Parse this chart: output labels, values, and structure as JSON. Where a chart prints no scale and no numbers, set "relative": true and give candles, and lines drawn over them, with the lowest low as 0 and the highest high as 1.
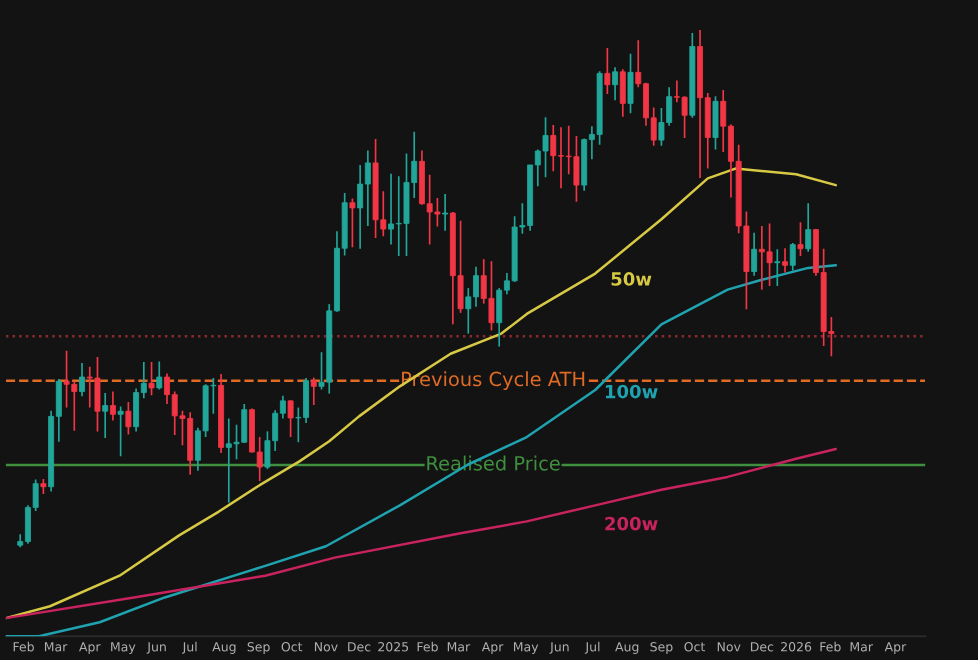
{
  "chart_data": {
    "type": "candlestick",
    "relative": true,
    "legend": false,
    "x": [
      "2024-01-29",
      "2024-02-05",
      "2024-02-12",
      "2024-02-19",
      "2024-02-26",
      "2024-03-04",
      "2024-03-11",
      "2024-03-18",
      "2024-03-25",
      "2024-04-01",
      "2024-04-08",
      "2024-04-15",
      "2024-04-22",
      "2024-04-29",
      "2024-05-06",
      "2024-05-13",
      "2024-05-20",
      "2024-05-27",
      "2024-06-03",
      "2024-06-10",
      "2024-06-17",
      "2024-06-24",
      "2024-07-01",
      "2024-07-08",
      "2024-07-15",
      "2024-07-22",
      "2024-07-29",
      "2024-08-05",
      "2024-08-12",
      "2024-08-19",
      "2024-08-26",
      "2024-09-02",
      "2024-09-09",
      "2024-09-16",
      "2024-09-23",
      "2024-09-30",
      "2024-10-07",
      "2024-10-14",
      "2024-10-21",
      "2024-10-28",
      "2024-11-04",
      "2024-11-11",
      "2024-11-18",
      "2024-11-25",
      "2024-12-02",
      "2024-12-09",
      "2024-12-16",
      "2024-12-23",
      "2024-12-30",
      "2025-01-06",
      "2025-01-13",
      "2025-01-20",
      "2025-01-27",
      "2025-02-03",
      "2025-02-10",
      "2025-02-17",
      "2025-02-24",
      "2025-03-03",
      "2025-03-10",
      "2025-03-17",
      "2025-03-24",
      "2025-03-31",
      "2025-04-07",
      "2025-04-14",
      "2025-04-21",
      "2025-04-28",
      "2025-05-05",
      "2025-05-12",
      "2025-05-19",
      "2025-05-26",
      "2025-06-02",
      "2025-06-09",
      "2025-06-16",
      "2025-06-23",
      "2025-06-30",
      "2025-07-07",
      "2025-07-14",
      "2025-07-21",
      "2025-07-28",
      "2025-08-04",
      "2025-08-11",
      "2025-08-18",
      "2025-08-25",
      "2025-09-01",
      "2025-09-08",
      "2025-09-15",
      "2025-09-22",
      "2025-09-29",
      "2025-10-06",
      "2025-10-13",
      "2025-10-20",
      "2025-10-27",
      "2025-11-03",
      "2025-11-10",
      "2025-11-17",
      "2025-11-24",
      "2025-12-01",
      "2025-12-08",
      "2025-12-15",
      "2025-12-22",
      "2025-12-29",
      "2026-01-05",
      "2026-01-12",
      "2026-01-19",
      "2026-01-26",
      "2026-02-02"
    ],
    "ohlc": [
      [
        0.004,
        0.025,
        0.0,
        0.011
      ],
      [
        0.011,
        0.081,
        0.007,
        0.077
      ],
      [
        0.077,
        0.131,
        0.07,
        0.123
      ],
      [
        0.123,
        0.132,
        0.103,
        0.117
      ],
      [
        0.117,
        0.264,
        0.108,
        0.253
      ],
      [
        0.253,
        0.325,
        0.204,
        0.321
      ],
      [
        0.321,
        0.38,
        0.27,
        0.315
      ],
      [
        0.315,
        0.321,
        0.225,
        0.301
      ],
      [
        0.301,
        0.356,
        0.292,
        0.329
      ],
      [
        0.329,
        0.349,
        0.27,
        0.327
      ],
      [
        0.327,
        0.368,
        0.224,
        0.263
      ],
      [
        0.263,
        0.298,
        0.211,
        0.274
      ],
      [
        0.274,
        0.301,
        0.245,
        0.257
      ],
      [
        0.257,
        0.272,
        0.176,
        0.263
      ],
      [
        0.263,
        0.281,
        0.218,
        0.233
      ],
      [
        0.233,
        0.307,
        0.224,
        0.299
      ],
      [
        0.299,
        0.358,
        0.288,
        0.317
      ],
      [
        0.317,
        0.358,
        0.294,
        0.308
      ],
      [
        0.308,
        0.359,
        0.305,
        0.329
      ],
      [
        0.329,
        0.336,
        0.277,
        0.295
      ],
      [
        0.295,
        0.301,
        0.217,
        0.254
      ],
      [
        0.254,
        0.264,
        0.197,
        0.249
      ],
      [
        0.249,
        0.261,
        0.14,
        0.168
      ],
      [
        0.168,
        0.231,
        0.148,
        0.225
      ],
      [
        0.225,
        0.315,
        0.213,
        0.312
      ],
      [
        0.312,
        0.327,
        0.258,
        0.313
      ],
      [
        0.313,
        0.335,
        0.182,
        0.193
      ],
      [
        0.193,
        0.249,
        0.086,
        0.2
      ],
      [
        0.2,
        0.237,
        0.17,
        0.203
      ],
      [
        0.203,
        0.277,
        0.202,
        0.266
      ],
      [
        0.266,
        0.268,
        0.183,
        0.184
      ],
      [
        0.184,
        0.213,
        0.128,
        0.155
      ],
      [
        0.155,
        0.224,
        0.151,
        0.206
      ],
      [
        0.206,
        0.265,
        0.186,
        0.259
      ],
      [
        0.259,
        0.293,
        0.249,
        0.283
      ],
      [
        0.283,
        0.284,
        0.213,
        0.25
      ],
      [
        0.25,
        0.27,
        0.203,
        0.251
      ],
      [
        0.251,
        0.327,
        0.24,
        0.322
      ],
      [
        0.322,
        0.328,
        0.275,
        0.311
      ],
      [
        0.311,
        0.377,
        0.305,
        0.319
      ],
      [
        0.319,
        0.47,
        0.297,
        0.457
      ],
      [
        0.457,
        0.611,
        0.455,
        0.578
      ],
      [
        0.578,
        0.685,
        0.564,
        0.666
      ],
      [
        0.666,
        0.674,
        0.58,
        0.656
      ],
      [
        0.656,
        0.739,
        0.577,
        0.702
      ],
      [
        0.702,
        0.767,
        0.621,
        0.743
      ],
      [
        0.743,
        0.789,
        0.598,
        0.633
      ],
      [
        0.633,
        0.688,
        0.601,
        0.615
      ],
      [
        0.615,
        0.722,
        0.585,
        0.625
      ],
      [
        0.625,
        0.717,
        0.563,
        0.626
      ],
      [
        0.626,
        0.761,
        0.563,
        0.705
      ],
      [
        0.705,
        0.803,
        0.675,
        0.746
      ],
      [
        0.746,
        0.767,
        0.662,
        0.664
      ],
      [
        0.664,
        0.72,
        0.585,
        0.648
      ],
      [
        0.648,
        0.675,
        0.62,
        0.644
      ],
      [
        0.644,
        0.683,
        0.612,
        0.646
      ],
      [
        0.646,
        0.648,
        0.431,
        0.525
      ],
      [
        0.525,
        0.631,
        0.453,
        0.461
      ],
      [
        0.461,
        0.501,
        0.413,
        0.484
      ],
      [
        0.484,
        0.542,
        0.465,
        0.525
      ],
      [
        0.525,
        0.557,
        0.471,
        0.481
      ],
      [
        0.481,
        0.553,
        0.419,
        0.434
      ],
      [
        0.434,
        0.501,
        0.388,
        0.497
      ],
      [
        0.497,
        0.53,
        0.489,
        0.515
      ],
      [
        0.515,
        0.64,
        0.513,
        0.619
      ],
      [
        0.619,
        0.665,
        0.606,
        0.622
      ],
      [
        0.622,
        0.739,
        0.612,
        0.739
      ],
      [
        0.739,
        0.769,
        0.698,
        0.766
      ],
      [
        0.766,
        0.831,
        0.715,
        0.796
      ],
      [
        0.796,
        0.816,
        0.727,
        0.757
      ],
      [
        0.757,
        0.812,
        0.694,
        0.756
      ],
      [
        0.756,
        0.815,
        0.721,
        0.755
      ],
      [
        0.755,
        0.795,
        0.668,
        0.7
      ],
      [
        0.7,
        0.79,
        0.689,
        0.788
      ],
      [
        0.788,
        0.814,
        0.75,
        0.798
      ],
      [
        0.798,
        0.92,
        0.778,
        0.916
      ],
      [
        0.916,
        0.965,
        0.876,
        0.894
      ],
      [
        0.894,
        0.928,
        0.864,
        0.919
      ],
      [
        0.919,
        0.924,
        0.832,
        0.858
      ],
      [
        0.858,
        0.954,
        0.839,
        0.918
      ],
      [
        0.918,
        0.98,
        0.889,
        0.896
      ],
      [
        0.896,
        0.898,
        0.815,
        0.83
      ],
      [
        0.83,
        0.85,
        0.776,
        0.787
      ],
      [
        0.787,
        0.849,
        0.776,
        0.821
      ],
      [
        0.821,
        0.889,
        0.815,
        0.871
      ],
      [
        0.871,
        0.902,
        0.86,
        0.87
      ],
      [
        0.87,
        0.872,
        0.791,
        0.835
      ],
      [
        0.835,
        0.994,
        0.83,
        0.968
      ],
      [
        0.968,
        1.0,
        0.714,
        0.869
      ],
      [
        0.869,
        0.878,
        0.732,
        0.792
      ],
      [
        0.792,
        0.872,
        0.769,
        0.862
      ],
      [
        0.862,
        0.884,
        0.764,
        0.814
      ],
      [
        0.814,
        0.817,
        0.676,
        0.746
      ],
      [
        0.746,
        0.778,
        0.607,
        0.621
      ],
      [
        0.621,
        0.649,
        0.46,
        0.533
      ],
      [
        0.533,
        0.608,
        0.525,
        0.576
      ],
      [
        0.576,
        0.621,
        0.498,
        0.571
      ],
      [
        0.571,
        0.626,
        0.505,
        0.55
      ],
      [
        0.55,
        0.576,
        0.505,
        0.552
      ],
      [
        0.552,
        0.578,
        0.531,
        0.545
      ],
      [
        0.545,
        0.588,
        0.535,
        0.585
      ],
      [
        0.585,
        0.628,
        0.563,
        0.577
      ],
      [
        0.577,
        0.665,
        0.571,
        0.614
      ],
      [
        0.614,
        0.614,
        0.525,
        0.531
      ],
      [
        0.531,
        0.577,
        0.389,
        0.417
      ],
      [
        0.417,
        0.445,
        0.369,
        0.413
      ]
    ],
    "series": [
      {
        "type": "line",
        "name": "50w",
        "color": "#d8c945",
        "x": [
          "2024-01-16",
          "2024-02-25",
          "2024-04-28",
          "2024-06-21",
          "2024-07-27",
          "2024-09-02",
          "2024-10-08",
          "2024-11-04",
          "2024-12-01",
          "2025-01-07",
          "2025-02-22",
          "2025-04-09",
          "2025-05-02",
          "2025-07-03",
          "2025-09-01",
          "2025-10-13",
          "2025-11-07",
          "2026-01-01",
          "2026-02-06"
        ],
        "values": [
          -0.137,
          -0.114,
          -0.055,
          0.023,
          0.069,
          0.12,
          0.166,
          0.205,
          0.253,
          0.311,
          0.374,
          0.413,
          0.451,
          0.529,
          0.634,
          0.713,
          0.732,
          0.721,
          0.7
        ]
      },
      {
        "type": "line",
        "name": "100w",
        "color": "#1fa3b0",
        "x": [
          "2024-01-16",
          "2024-02-15",
          "2024-04-10",
          "2024-06-08",
          "2024-09-07",
          "2024-11-01",
          "2025-01-07",
          "2025-03-09",
          "2025-05-02",
          "2025-07-03",
          "2025-09-01",
          "2025-10-31",
          "2025-12-01",
          "2026-01-12",
          "2026-02-06"
        ],
        "values": [
          -0.172,
          -0.172,
          -0.145,
          -0.097,
          -0.036,
          0.002,
          0.081,
          0.159,
          0.213,
          0.304,
          0.431,
          0.498,
          0.517,
          0.54,
          0.545
        ]
      },
      {
        "type": "line",
        "name": "200w",
        "color": "#c8235e",
        "x": [
          "2024-01-16",
          "2024-05-11",
          "2024-09-07",
          "2024-11-09",
          "2025-03-03",
          "2025-05-02",
          "2025-07-03",
          "2025-09-01",
          "2025-10-31",
          "2026-01-01",
          "2026-02-06"
        ],
        "values": [
          -0.137,
          -0.097,
          -0.055,
          -0.02,
          0.027,
          0.05,
          0.081,
          0.111,
          0.136,
          0.171,
          0.19
        ]
      }
    ],
    "ref_lines": [
      {
        "axis": "y",
        "value": 0.322,
        "label": "Previous Cycle ATH",
        "color": "#e06b25",
        "line_style": "dashed"
      },
      {
        "axis": "y",
        "value": 0.159,
        "label": "Realised Price",
        "color": "#3f8f3f",
        "line_style": "solid"
      },
      {
        "axis": "y",
        "value": 0.408,
        "color": "#8a2a30",
        "line_style": "dotted"
      }
    ],
    "xlim": [
      "2024-01-16",
      "2026-04-28"
    ],
    "xticks": [
      {
        "value": "2024-02-01",
        "label": "Feb"
      },
      {
        "value": "2024-03-01",
        "label": "Mar"
      },
      {
        "value": "2024-04-01",
        "label": "Apr"
      },
      {
        "value": "2024-05-01",
        "label": "May"
      },
      {
        "value": "2024-06-01",
        "label": "Jun"
      },
      {
        "value": "2024-07-01",
        "label": "Jul"
      },
      {
        "value": "2024-08-01",
        "label": "Aug"
      },
      {
        "value": "2024-09-01",
        "label": "Sep"
      },
      {
        "value": "2024-10-01",
        "label": "Oct"
      },
      {
        "value": "2024-11-01",
        "label": "Nov"
      },
      {
        "value": "2024-12-01",
        "label": "Dec"
      },
      {
        "value": "2025-01-01",
        "label": "2025"
      },
      {
        "value": "2025-02-01",
        "label": "Feb"
      },
      {
        "value": "2025-03-01",
        "label": "Mar"
      },
      {
        "value": "2025-04-01",
        "label": "Apr"
      },
      {
        "value": "2025-05-01",
        "label": "May"
      },
      {
        "value": "2025-06-01",
        "label": "Jun"
      },
      {
        "value": "2025-07-01",
        "label": "Jul"
      },
      {
        "value": "2025-08-01",
        "label": "Aug"
      },
      {
        "value": "2025-09-01",
        "label": "Sep"
      },
      {
        "value": "2025-10-01",
        "label": "Oct"
      },
      {
        "value": "2025-11-01",
        "label": "Nov"
      },
      {
        "value": "2025-12-01",
        "label": "Dec"
      },
      {
        "value": "2026-01-01",
        "label": "2026"
      },
      {
        "value": "2026-02-01",
        "label": "Feb"
      },
      {
        "value": "2026-03-01",
        "label": "Mar"
      },
      {
        "value": "2026-04-01",
        "label": "Apr"
      }
    ]
  }
}
